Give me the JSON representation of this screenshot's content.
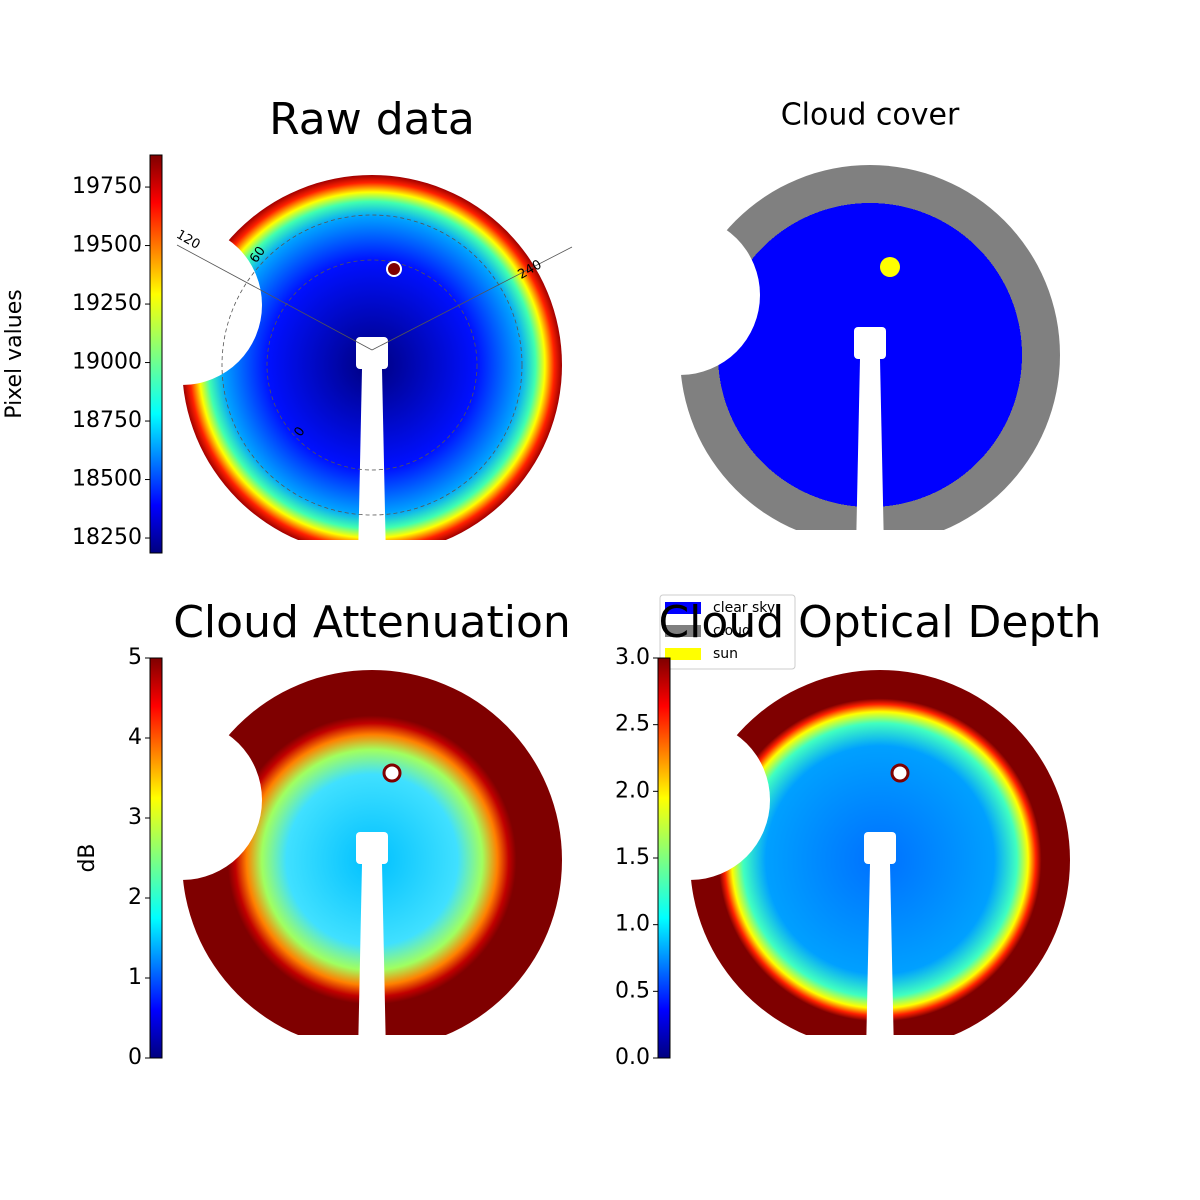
{
  "chart_data": [
    {
      "type": "image",
      "title": "Raw data",
      "colorbar_label": "Pixel values",
      "colormap": "jet",
      "ylim": [
        18186,
        19887
      ],
      "yticks": [
        18250,
        18500,
        18750,
        19000,
        19250,
        19500,
        19750
      ],
      "angle_ticks": [
        120,
        60,
        240,
        0
      ]
    },
    {
      "type": "image",
      "title": "Cloud cover",
      "series": [
        {
          "name": "clear sky",
          "color": "#0000ff"
        },
        {
          "name": "cloud",
          "color": "#808080"
        },
        {
          "name": "sun",
          "color": "#ffff00"
        }
      ]
    },
    {
      "type": "image",
      "title": "Cloud Attenuation",
      "colorbar_label": "dB",
      "colormap": "jet",
      "ylim": [
        0,
        5
      ],
      "yticks": [
        0,
        1,
        2,
        3,
        4,
        5
      ]
    },
    {
      "type": "image",
      "title": "Cloud Optical Depth",
      "colormap": "jet",
      "ylim": [
        0,
        3
      ],
      "yticks": [
        {
          "value": 0,
          "label": "0.0"
        },
        {
          "value": 0.5,
          "label": "0.5"
        },
        {
          "value": 1,
          "label": "1.0"
        },
        {
          "value": 1.5,
          "label": "1.5"
        },
        {
          "value": 2,
          "label": "2.0"
        },
        {
          "value": 2.5,
          "label": "2.5"
        },
        {
          "value": 3,
          "label": "3.0"
        }
      ]
    }
  ]
}
